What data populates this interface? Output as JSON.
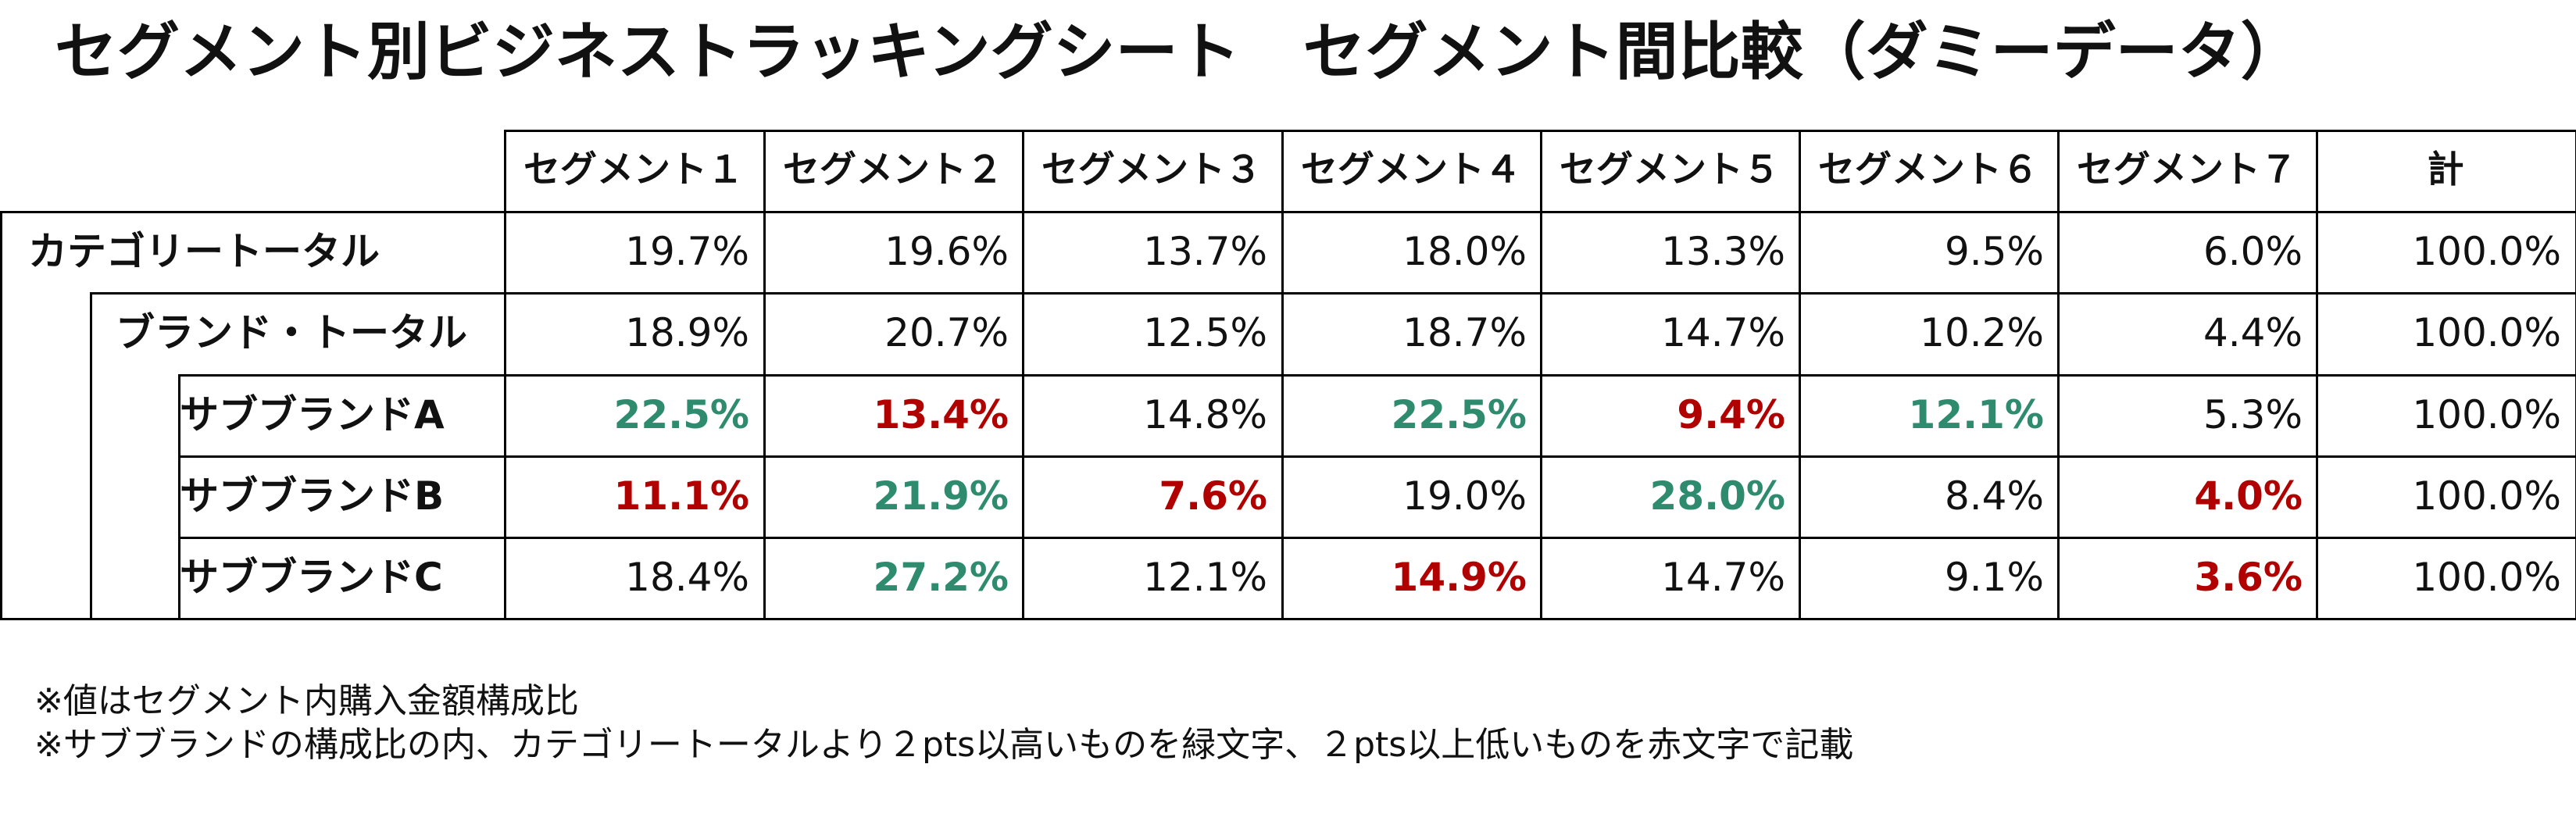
{
  "title": "セグメント別ビジネストラッキングシート　セグメント間比較（ダミーデータ）",
  "colors": {
    "good": "#2e8b6e",
    "bad": "#b00000"
  },
  "table": {
    "headers": [
      "セグメント１",
      "セグメント２",
      "セグメント３",
      "セグメント４",
      "セグメント５",
      "セグメント６",
      "セグメント７",
      "計"
    ],
    "rows": [
      {
        "label": "カテゴリートータル",
        "level": 0,
        "values": [
          "19.7%",
          "19.6%",
          "13.7%",
          "18.0%",
          "13.3%",
          "9.5%",
          "6.0%",
          "100.0%"
        ],
        "highlight": [
          "",
          "",
          "",
          "",
          "",
          "",
          "",
          ""
        ]
      },
      {
        "label": "ブランド・トータル",
        "level": 1,
        "values": [
          "18.9%",
          "20.7%",
          "12.5%",
          "18.7%",
          "14.7%",
          "10.2%",
          "4.4%",
          "100.0%"
        ],
        "highlight": [
          "",
          "",
          "",
          "",
          "",
          "",
          "",
          ""
        ]
      },
      {
        "label": "サブブランドA",
        "level": 2,
        "values": [
          "22.5%",
          "13.4%",
          "14.8%",
          "22.5%",
          "9.4%",
          "12.1%",
          "5.3%",
          "100.0%"
        ],
        "highlight": [
          "good",
          "bad",
          "",
          "good",
          "bad",
          "good",
          "",
          ""
        ]
      },
      {
        "label": "サブブランドB",
        "level": 2,
        "values": [
          "11.1%",
          "21.9%",
          "7.6%",
          "19.0%",
          "28.0%",
          "8.4%",
          "4.0%",
          "100.0%"
        ],
        "highlight": [
          "bad",
          "good",
          "bad",
          "",
          "good",
          "",
          "bad",
          ""
        ]
      },
      {
        "label": "サブブランドC",
        "level": 2,
        "values": [
          "18.4%",
          "27.2%",
          "12.1%",
          "14.9%",
          "14.7%",
          "9.1%",
          "3.6%",
          "100.0%"
        ],
        "highlight": [
          "",
          "good",
          "",
          "bad",
          "",
          "",
          "bad",
          ""
        ]
      }
    ]
  },
  "notes": [
    "※値はセグメント内購入金額構成比",
    "※サブブランドの構成比の内、カテゴリートータルより２pts以高いものを緑文字、２pts以上低いものを赤文字で記載"
  ]
}
